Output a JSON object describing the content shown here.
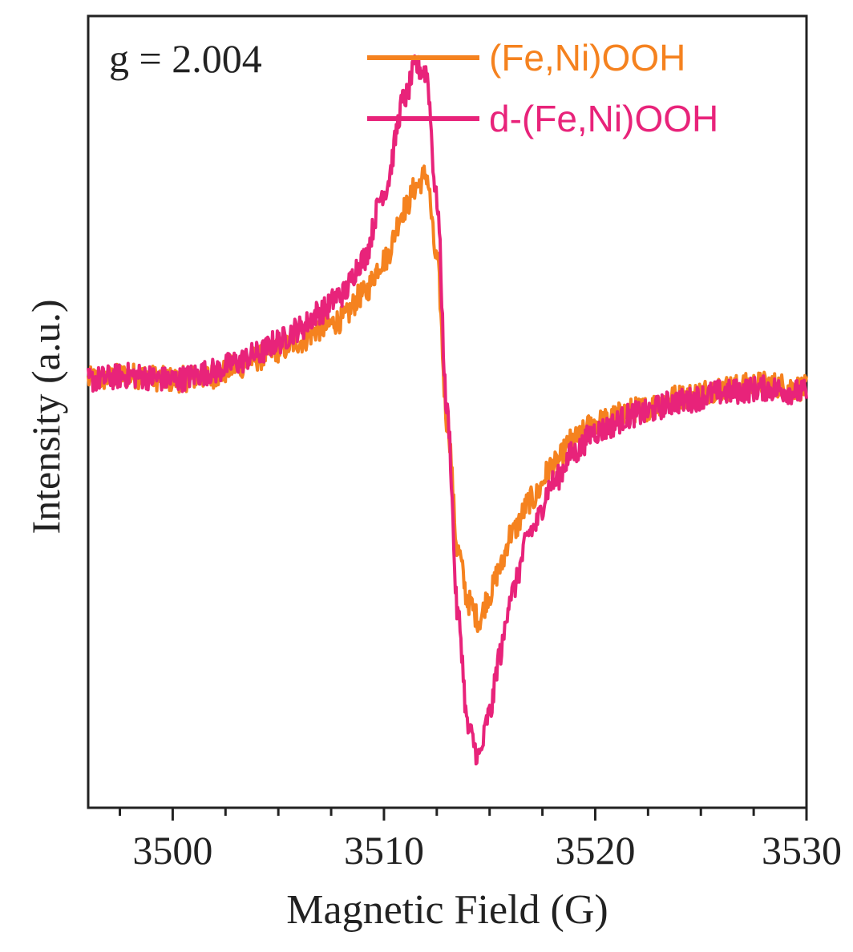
{
  "chart_data": {
    "type": "line",
    "title": "",
    "xlabel": "Magnetic Field (G)",
    "ylabel": "Intensity (a.u.)",
    "xlim": [
      3496,
      3530
    ],
    "ylim": [
      -1.0,
      0.85
    ],
    "xticks": [
      3500,
      3510,
      3520,
      3530
    ],
    "xtick_labels": [
      "3500",
      "3510",
      "3520",
      "3530"
    ],
    "yticks_shown": false,
    "annotation": "g = 2.004",
    "legend_position": "top-right",
    "series": [
      {
        "name": "(Fe,Ni)OOH",
        "color": "#F5821F",
        "x": [
          3496,
          3498,
          3500,
          3502,
          3503,
          3504,
          3505,
          3506,
          3507,
          3508,
          3509,
          3510,
          3511,
          3511.5,
          3512,
          3512.5,
          3513,
          3513.5,
          3514,
          3514.5,
          3515,
          3515.5,
          3516,
          3517,
          3518,
          3519,
          3520,
          3522,
          3524,
          3526,
          3528,
          3530
        ],
        "values": [
          0.0,
          0.01,
          0.0,
          0.01,
          0.03,
          0.05,
          0.07,
          0.09,
          0.12,
          0.14,
          0.2,
          0.28,
          0.4,
          0.45,
          0.48,
          0.28,
          -0.1,
          -0.4,
          -0.52,
          -0.56,
          -0.5,
          -0.44,
          -0.36,
          -0.28,
          -0.2,
          -0.14,
          -0.1,
          -0.07,
          -0.04,
          -0.02,
          -0.01,
          -0.02
        ]
      },
      {
        "name": "d-(Fe,Ni)OOH",
        "color": "#E8237A",
        "x": [
          3496,
          3498,
          3500,
          3502,
          3503,
          3504,
          3505,
          3506,
          3507,
          3508,
          3509,
          3510,
          3511,
          3511.5,
          3512,
          3512.5,
          3513,
          3513.5,
          3514,
          3514.5,
          3515,
          3515.5,
          3516,
          3517,
          3518,
          3519,
          3520,
          3522,
          3524,
          3526,
          3528,
          3530
        ],
        "values": [
          0.0,
          0.01,
          0.0,
          0.02,
          0.04,
          0.06,
          0.09,
          0.12,
          0.16,
          0.2,
          0.28,
          0.44,
          0.66,
          0.73,
          0.72,
          0.42,
          -0.08,
          -0.55,
          -0.82,
          -0.88,
          -0.78,
          -0.64,
          -0.5,
          -0.35,
          -0.24,
          -0.17,
          -0.12,
          -0.08,
          -0.05,
          -0.03,
          -0.02,
          -0.03
        ]
      }
    ]
  }
}
